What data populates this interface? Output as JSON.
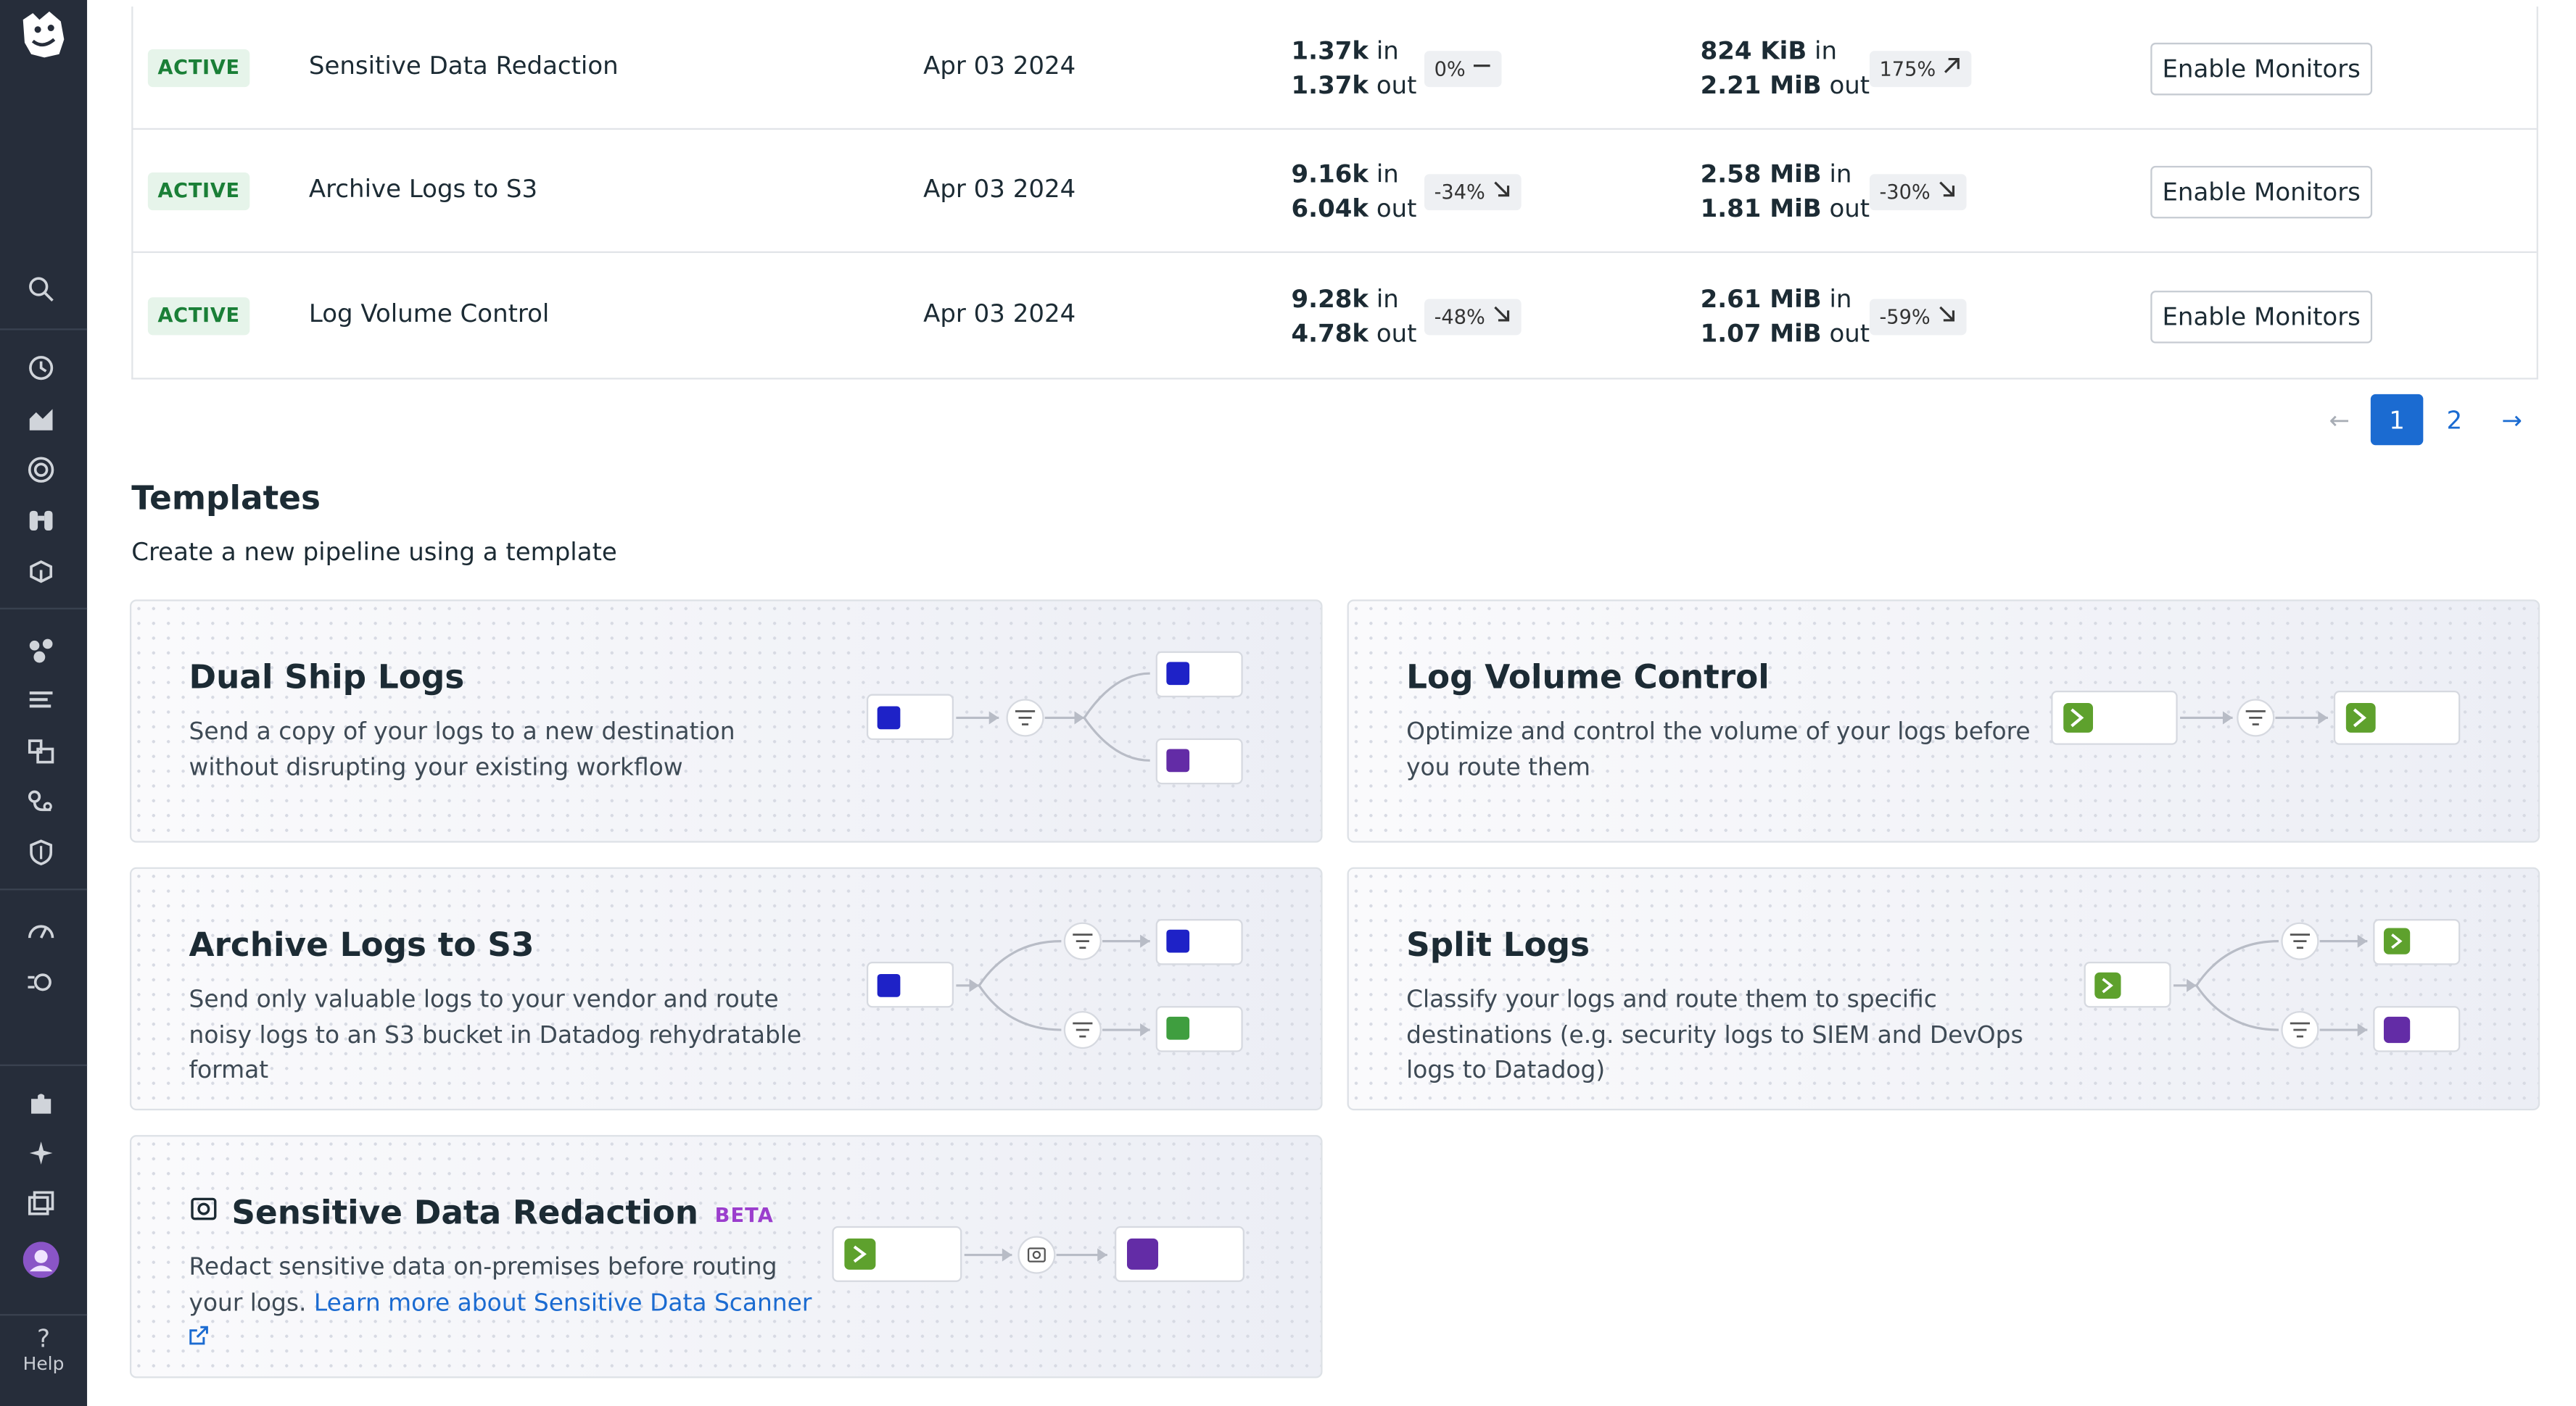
{
  "sidebar": {
    "help_label": "Help",
    "icons": [
      "search-icon",
      "history-icon",
      "dashboards-icon",
      "monitors-icon",
      "watchdog-icon",
      "apm-icon",
      "infrastructure-icon",
      "logs-icon",
      "metrics-icon",
      "integrations-icon",
      "security-icon",
      "performance-icon",
      "observability-pipelines-icon",
      "integrations-puzzle-icon",
      "bits-ai-icon",
      "notebooks-icon",
      "user-avatar-icon",
      "help-icon"
    ]
  },
  "pipelines": {
    "rows": [
      {
        "status": "ACTIVE",
        "name": "Sensitive Data Redaction",
        "date": "Apr 03 2024",
        "events_in": "1.37k",
        "events_out": "1.37k",
        "events_delta": "0%",
        "events_trend": "flat",
        "bytes_in": "824 KiB",
        "bytes_out": "2.21 MiB",
        "bytes_delta": "175%",
        "bytes_trend": "up",
        "action": "Enable Monitors"
      },
      {
        "status": "ACTIVE",
        "name": "Archive Logs to S3",
        "date": "Apr 03 2024",
        "events_in": "9.16k",
        "events_out": "6.04k",
        "events_delta": "-34%",
        "events_trend": "down",
        "bytes_in": "2.58 MiB",
        "bytes_out": "1.81 MiB",
        "bytes_delta": "-30%",
        "bytes_trend": "down",
        "action": "Enable Monitors"
      },
      {
        "status": "ACTIVE",
        "name": "Log Volume Control",
        "date": "Apr 03 2024",
        "events_in": "9.28k",
        "events_out": "4.78k",
        "events_delta": "-48%",
        "events_trend": "down",
        "bytes_in": "2.61 MiB",
        "bytes_out": "1.07 MiB",
        "bytes_delta": "-59%",
        "bytes_trend": "down",
        "action": "Enable Monitors"
      }
    ],
    "in_suffix": "in",
    "out_suffix": "out"
  },
  "pagination": {
    "prev": "←",
    "pages": [
      "1",
      "2"
    ],
    "current": "1",
    "next": "→"
  },
  "templates": {
    "title": "Templates",
    "subtitle": "Create a new pipeline using a template",
    "cards": [
      {
        "title": "Dual Ship Logs",
        "description": "Send a copy of your logs to a new destination without disrupting your existing workflow"
      },
      {
        "title": "Log Volume Control",
        "description": "Optimize and control the volume of your logs before you route them"
      },
      {
        "title": "Archive Logs to S3",
        "description": "Send only valuable logs to your vendor and route noisy logs to an S3 bucket in Datadog rehydratable format"
      },
      {
        "title": "Split Logs",
        "description": "Classify your logs and route them to specific destinations (e.g. security logs to SIEM and DevOps logs to Datadog)"
      },
      {
        "title": "Sensitive Data Redaction",
        "badge": "BETA",
        "description_prefix": "Redact sensitive data on-premises before routing your logs. ",
        "link": "Learn more about Sensitive Data Scanner"
      }
    ]
  },
  "colors": {
    "sidebar": "#262d3a",
    "accent": "#1b6bd1",
    "active_badge": "#1a7f37",
    "sumo": "#1e22c7",
    "shell": "#5ea12d",
    "datadog": "#632ca6",
    "s3": "#3f9e3f"
  }
}
